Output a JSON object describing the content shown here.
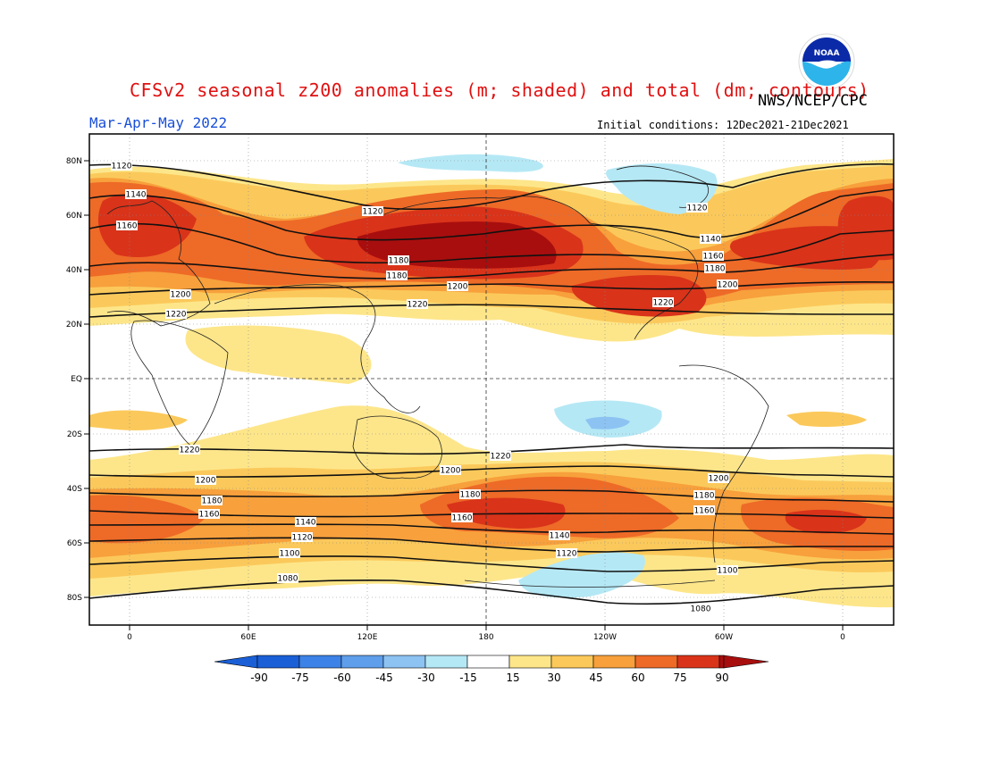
{
  "header": {
    "title": "CFSv2 seasonal z200 anomalies (m; shaded) and total (dm; contours)",
    "organization": "NWS/NCEP/CPC",
    "season": "Mar-Apr-May 2022",
    "initial_conditions": "Initial conditions: 12Dec2021-21Dec2021",
    "logo_text": "NOAA"
  },
  "map": {
    "lat_labels": [
      "80N",
      "60N",
      "40N",
      "20N",
      "EQ",
      "20S",
      "40S",
      "60S",
      "80S"
    ],
    "lon_labels": [
      "0",
      "60E",
      "120E",
      "180",
      "120W",
      "60W",
      "0"
    ],
    "contour_labels": [
      "1120",
      "1140",
      "1160",
      "1120",
      "1180",
      "1180",
      "1200",
      "1220",
      "1200",
      "1220",
      "1120",
      "1140",
      "1160",
      "1180",
      "1200",
      "1220",
      "1220",
      "1200",
      "1180",
      "1160",
      "1140",
      "1120",
      "1100",
      "1080",
      "1200",
      "1180",
      "1160",
      "1140",
      "1120",
      "1220",
      "1200",
      "1180",
      "1160",
      "1100",
      "1080"
    ],
    "colors": {
      "neg90": "#1a5fd6",
      "neg75": "#3d82e6",
      "neg60": "#5e9eea",
      "neg45": "#8cc3f2",
      "neg30": "#b5e8f5",
      "neutral": "#ffffff",
      "pos15": "#fde68a",
      "pos30": "#fbc95b",
      "pos45": "#f7a03c",
      "pos60": "#ee6a27",
      "pos75": "#d9331a",
      "pos90": "#a80e0e"
    }
  },
  "colorbar": {
    "ticks": [
      "-90",
      "-75",
      "-60",
      "-45",
      "-30",
      "-15",
      "15",
      "30",
      "45",
      "60",
      "75",
      "90"
    ]
  }
}
